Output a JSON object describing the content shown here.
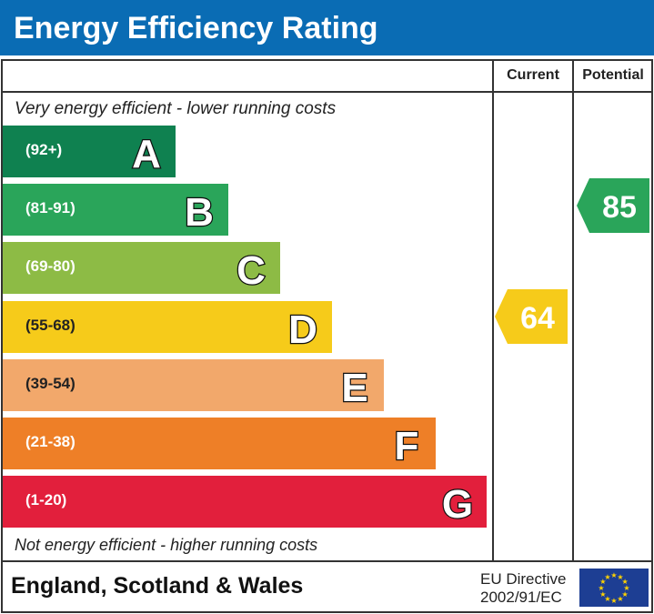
{
  "title": "Energy Efficiency Rating",
  "columns": {
    "current": "Current",
    "potential": "Potential"
  },
  "top_note": "Very energy efficient - lower running costs",
  "bottom_note": "Not energy efficient - higher running costs",
  "footer": {
    "region": "England, Scotland & Wales",
    "directive_line1": "EU Directive",
    "directive_line2": "2002/91/EC"
  },
  "chart_data": {
    "type": "bar",
    "bands": [
      {
        "letter": "A",
        "range": "(92+)",
        "color": "#0f8150"
      },
      {
        "letter": "B",
        "range": "(81-91)",
        "color": "#2aa55a"
      },
      {
        "letter": "C",
        "range": "(69-80)",
        "color": "#8dbb45"
      },
      {
        "letter": "D",
        "range": "(55-68)",
        "color": "#f6cb1a"
      },
      {
        "letter": "E",
        "range": "(39-54)",
        "color": "#f2a86b"
      },
      {
        "letter": "F",
        "range": "(21-38)",
        "color": "#ee7f27"
      },
      {
        "letter": "G",
        "range": "(1-20)",
        "color": "#e21f3c"
      }
    ],
    "current": {
      "value": "64",
      "band": "D",
      "color": "#f6cb1a"
    },
    "potential": {
      "value": "85",
      "band": "B",
      "color": "#2aa55a"
    }
  }
}
